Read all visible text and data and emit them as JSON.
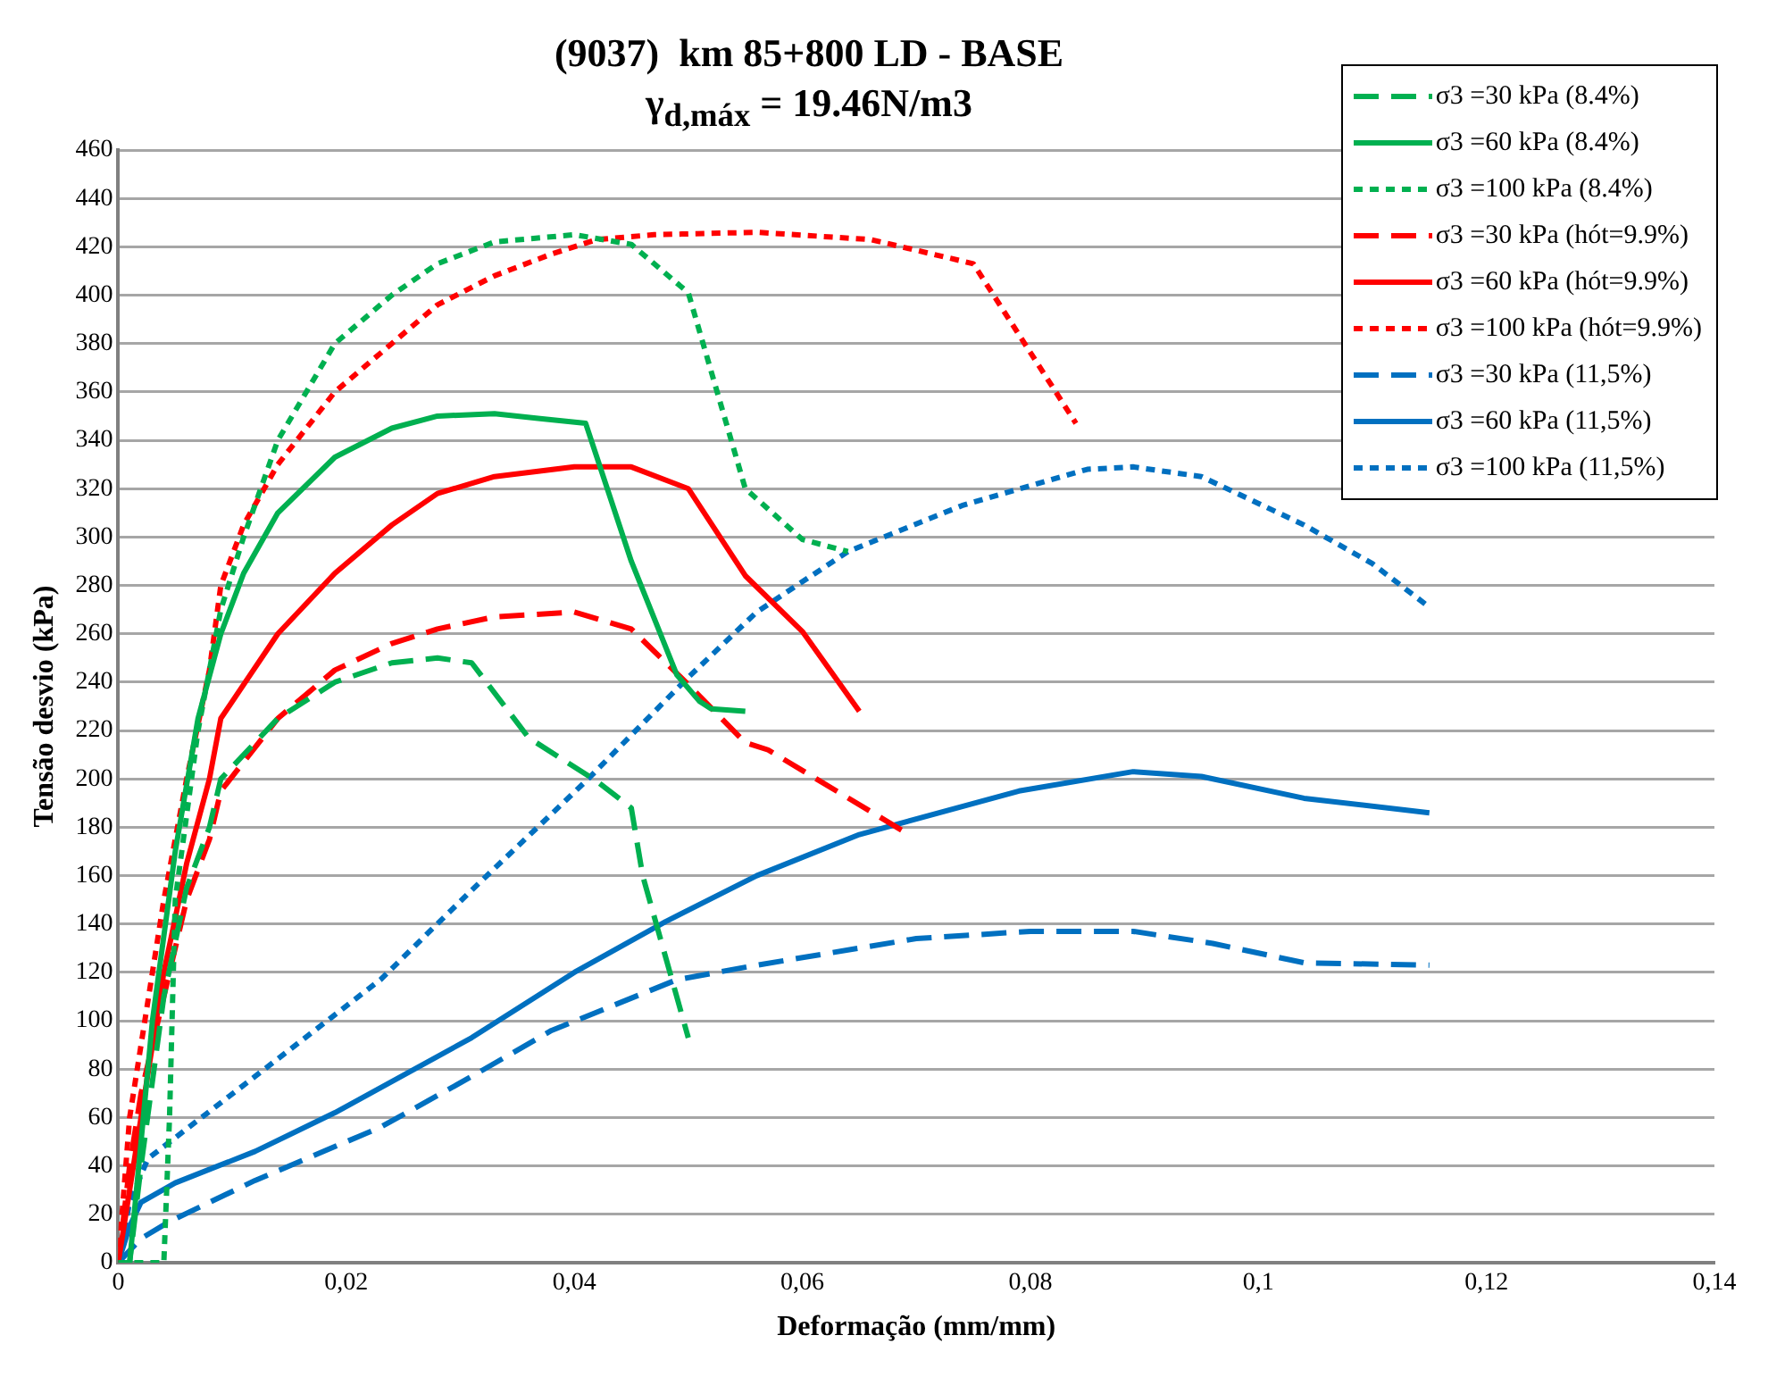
{
  "chart_data": {
    "type": "line",
    "title": "(9037)  km 85+800 LD - BASE",
    "subtitle": "γ$_{d,máx}$ = 19.46N/m3",
    "xlabel": "Deformação (mm/mm)",
    "ylabel": "Tensão desvio (kPa)",
    "xlim": [
      0,
      0.14
    ],
    "xticks": [
      0,
      {
        "value": 0.02,
        "label": "0,02"
      },
      {
        "value": 0.04,
        "label": "0,04"
      },
      {
        "value": 0.06,
        "label": "0,06"
      },
      {
        "value": 0.08,
        "label": "0,08"
      },
      {
        "value": 0.1,
        "label": "0,1"
      },
      {
        "value": 0.12,
        "label": "0,12"
      },
      {
        "value": 0.14,
        "label": "0,14"
      }
    ],
    "ylim": [
      0,
      460
    ],
    "yticks": [
      0,
      20,
      40,
      60,
      80,
      100,
      120,
      140,
      160,
      180,
      200,
      220,
      240,
      260,
      280,
      300,
      320,
      340,
      360,
      380,
      400,
      420,
      440,
      460
    ],
    "grid": "y",
    "legend": "top right",
    "marker": "none",
    "series": [
      {
        "name": "σ3 =30 kPa (8.4%)",
        "color": "#00b050",
        "line_style": "dashed",
        "x": [
          0,
          0.001,
          0.002,
          0.004,
          0.006,
          0.008,
          0.009,
          0.014,
          0.019,
          0.024,
          0.028,
          0.031,
          0.036,
          0.042,
          0.045,
          0.046,
          0.05
        ],
        "values": [
          0,
          0,
          40,
          110,
          155,
          180,
          200,
          225,
          240,
          248,
          250,
          248,
          217,
          199,
          188,
          160,
          93
        ]
      },
      {
        "name": "σ3 =60 kPa (8.4%)",
        "color": "#00b050",
        "line_style": "solid",
        "x": [
          0,
          0.001,
          0.003,
          0.005,
          0.007,
          0.009,
          0.011,
          0.014,
          0.019,
          0.024,
          0.028,
          0.033,
          0.037,
          0.041,
          0.045,
          0.049,
          0.051,
          0.052,
          0.055
        ],
        "values": [
          0,
          0,
          100,
          170,
          225,
          260,
          285,
          310,
          333,
          345,
          350,
          351,
          349,
          347,
          290,
          243,
          232,
          229,
          228
        ]
      },
      {
        "name": "σ3 =100 kPa (8.4%)",
        "color": "#00b050",
        "line_style": "dotted",
        "x": [
          0,
          0.004,
          0.0045,
          0.005,
          0.007,
          0.009,
          0.011,
          0.014,
          0.019,
          0.024,
          0.028,
          0.033,
          0.04,
          0.045,
          0.05,
          0.055,
          0.06,
          0.064
        ],
        "values": [
          0,
          0,
          60,
          150,
          220,
          270,
          300,
          340,
          380,
          400,
          413,
          422,
          425,
          421,
          401,
          320,
          299,
          294
        ]
      },
      {
        "name": "σ3 =30 kPa (hót=9.9%)",
        "color": "#ff0000",
        "line_style": "dashed",
        "x": [
          0,
          0.001,
          0.002,
          0.004,
          0.006,
          0.008,
          0.009,
          0.014,
          0.019,
          0.024,
          0.028,
          0.033,
          0.04,
          0.045,
          0.05,
          0.055,
          0.057,
          0.069
        ],
        "values": [
          0,
          40,
          70,
          110,
          150,
          175,
          195,
          225,
          245,
          256,
          262,
          267,
          269,
          262,
          239,
          215,
          212,
          178
        ]
      },
      {
        "name": "σ3 =60 kPa (hót=9.9%)",
        "color": "#ff0000",
        "line_style": "solid",
        "x": [
          0,
          0.002,
          0.004,
          0.006,
          0.008,
          0.009,
          0.014,
          0.019,
          0.024,
          0.028,
          0.033,
          0.04,
          0.045,
          0.05,
          0.055,
          0.06,
          0.065
        ],
        "values": [
          0,
          60,
          120,
          165,
          200,
          225,
          260,
          285,
          305,
          318,
          325,
          329,
          329,
          320,
          284,
          261,
          228
        ]
      },
      {
        "name": "σ3 =100 kPa (hót=9.9%)",
        "color": "#ff0000",
        "line_style": "dotted",
        "x": [
          0,
          0.001,
          0.002,
          0.004,
          0.006,
          0.008,
          0.009,
          0.011,
          0.014,
          0.019,
          0.024,
          0.028,
          0.033,
          0.038,
          0.042,
          0.047,
          0.056,
          0.066,
          0.075,
          0.084
        ],
        "values": [
          0,
          60,
          90,
          150,
          200,
          245,
          280,
          305,
          330,
          360,
          380,
          396,
          408,
          417,
          423,
          425,
          426,
          423,
          413,
          347
        ]
      },
      {
        "name": "σ3 =30 kPa (11,5%)",
        "color": "#0070c0",
        "line_style": "dashed",
        "x": [
          0,
          0.002,
          0.0045,
          0.012,
          0.023,
          0.031,
          0.038,
          0.049,
          0.056,
          0.07,
          0.08,
          0.089,
          0.096,
          0.104,
          0.115
        ],
        "values": [
          0,
          10,
          17,
          34,
          56,
          77,
          96,
          117,
          123,
          134,
          137,
          137,
          132,
          124,
          123
        ]
      },
      {
        "name": "σ3 =60 kPa (11,5%)",
        "color": "#0070c0",
        "line_style": "solid",
        "x": [
          0,
          0.001,
          0.002,
          0.005,
          0.012,
          0.019,
          0.031,
          0.04,
          0.048,
          0.056,
          0.065,
          0.079,
          0.089,
          0.095,
          0.104,
          0.115
        ],
        "values": [
          0,
          15,
          25,
          33,
          46,
          62,
          93,
          120,
          141,
          160,
          177,
          195,
          203,
          201,
          192,
          186
        ]
      },
      {
        "name": "σ3 =100 kPa (11,5%)",
        "color": "#0070c0",
        "line_style": "dotted",
        "x": [
          0,
          0.001,
          0.0026,
          0.012,
          0.023,
          0.031,
          0.041,
          0.05,
          0.056,
          0.064,
          0.074,
          0.085,
          0.089,
          0.095,
          0.104,
          0.11,
          0.115
        ],
        "values": [
          0,
          25,
          43,
          77,
          117,
          154,
          199,
          242,
          269,
          294,
          313,
          328,
          329,
          325,
          305,
          289,
          271
        ]
      }
    ]
  }
}
